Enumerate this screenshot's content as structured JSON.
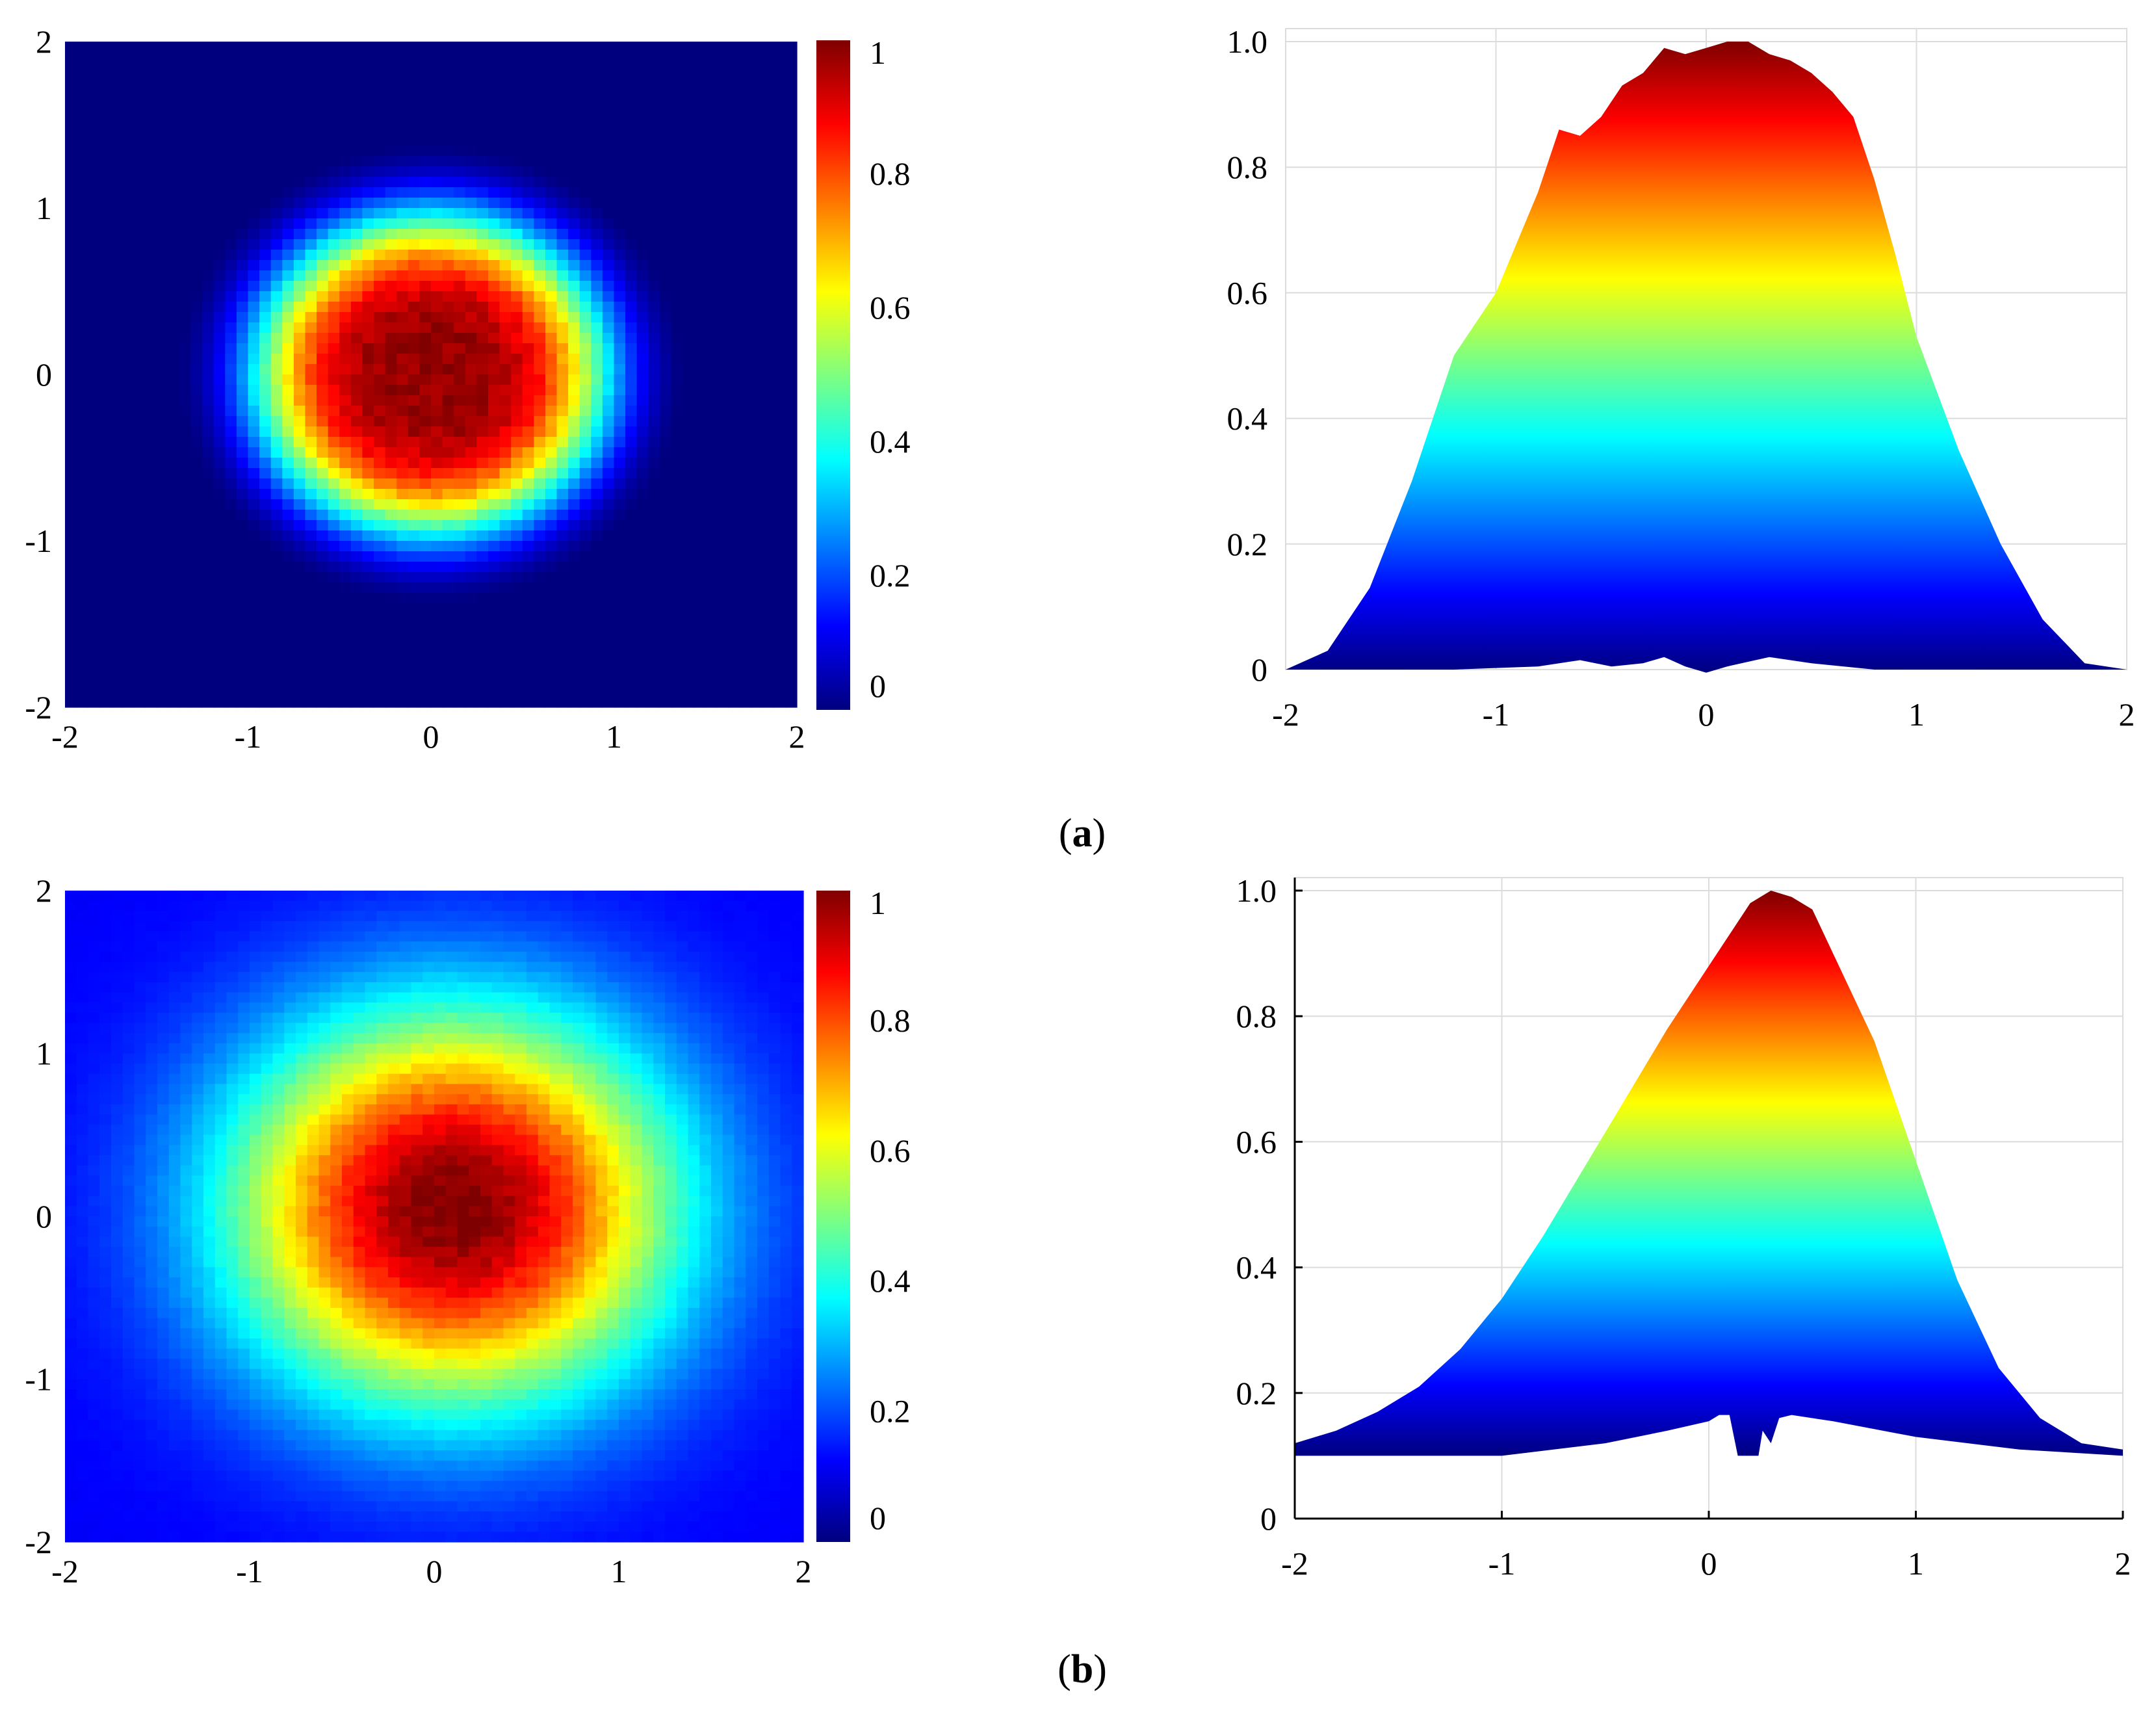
{
  "figure": {
    "panels": [
      {
        "label_open": "(",
        "label_letter": "a",
        "label_close": ")"
      },
      {
        "label_open": "(",
        "label_letter": "b",
        "label_close": ")"
      }
    ]
  },
  "colors": {
    "jet_stops": [
      "#00007f",
      "#0000ff",
      "#007fff",
      "#00ffff",
      "#7fff7f",
      "#ffff00",
      "#ff7f00",
      "#ff0000",
      "#7f0000"
    ],
    "grid": "#dcdcdc",
    "axis": "#000000"
  },
  "chart_data": [
    {
      "type": "heatmap",
      "panel": "a",
      "xlim": [
        -2,
        2
      ],
      "ylim": [
        -2,
        2
      ],
      "x_ticks": [
        -2,
        -1,
        0,
        1,
        2
      ],
      "y_ticks": [
        -2,
        -1,
        0,
        1,
        2
      ],
      "x_tick_labels": [
        "-2",
        "-1",
        "0",
        "1",
        "2"
      ],
      "y_tick_labels": [
        "-2",
        "-1",
        "0",
        "1",
        "2"
      ],
      "colormap": "jet",
      "colorbar": {
        "range": [
          0,
          1
        ],
        "ticks": [
          "0",
          "0.2",
          "0.4",
          "0.6",
          "0.8",
          "1"
        ]
      },
      "distribution": {
        "shape": "flat-top",
        "center": [
          0.0,
          0.0
        ],
        "half_width": 0.95,
        "peak": 1.0
      }
    },
    {
      "type": "area",
      "panel": "a",
      "xlim": [
        -2,
        2
      ],
      "ylim": [
        0,
        1
      ],
      "grid": true,
      "fill": "jet-vertical",
      "x_tick_labels": [
        "-2",
        "-1",
        "0",
        "1",
        "2"
      ],
      "y_tick_labels": [
        "0",
        "0.2",
        "0.4",
        "0.6",
        "0.8",
        "1.0"
      ],
      "upper": {
        "x": [
          -2.0,
          -1.8,
          -1.6,
          -1.4,
          -1.2,
          -1.0,
          -0.8,
          -0.7,
          -0.6,
          -0.5,
          -0.4,
          -0.3,
          -0.2,
          -0.1,
          0.0,
          0.1,
          0.2,
          0.3,
          0.4,
          0.5,
          0.6,
          0.7,
          0.8,
          0.9,
          1.0,
          1.2,
          1.4,
          1.6,
          1.8,
          2.0
        ],
        "y": [
          0.0,
          0.03,
          0.13,
          0.3,
          0.5,
          0.6,
          0.76,
          0.86,
          0.85,
          0.88,
          0.93,
          0.95,
          0.99,
          0.98,
          0.99,
          1.0,
          1.0,
          0.98,
          0.97,
          0.95,
          0.92,
          0.88,
          0.78,
          0.66,
          0.53,
          0.35,
          0.2,
          0.08,
          0.01,
          0.0
        ]
      },
      "lower": {
        "x": [
          -2.0,
          -1.2,
          -0.8,
          -0.6,
          -0.45,
          -0.3,
          -0.2,
          -0.1,
          0.0,
          0.1,
          0.3,
          0.5,
          0.8,
          1.2,
          2.0
        ],
        "y": [
          0.0,
          0.0,
          0.005,
          0.015,
          0.005,
          0.01,
          0.02,
          0.005,
          -0.005,
          0.005,
          0.02,
          0.01,
          0.0,
          0.0,
          0.0
        ]
      }
    },
    {
      "type": "heatmap",
      "panel": "b",
      "xlim": [
        -2,
        2
      ],
      "ylim": [
        -2,
        2
      ],
      "x_ticks": [
        -2,
        -1,
        0,
        1,
        2
      ],
      "y_ticks": [
        -2,
        -1,
        0,
        1,
        2
      ],
      "x_tick_labels": [
        "-2",
        "-1",
        "0",
        "1",
        "2"
      ],
      "y_tick_labels": [
        "-2",
        "-1",
        "0",
        "1",
        "2"
      ],
      "colormap": "jet",
      "colorbar": {
        "range": [
          0,
          1
        ],
        "ticks": [
          "0",
          "0.2",
          "0.4",
          "0.6",
          "0.8",
          "1"
        ]
      },
      "distribution": {
        "shape": "gaussian",
        "center": [
          0.1,
          0.05
        ],
        "half_width": 1.2,
        "peak": 1.0
      }
    },
    {
      "type": "area",
      "panel": "b",
      "xlim": [
        -2,
        2
      ],
      "ylim": [
        0,
        1
      ],
      "grid": true,
      "fill": "jet-vertical",
      "x_tick_labels": [
        "-2",
        "-1",
        "0",
        "1",
        "2"
      ],
      "y_tick_labels": [
        "0",
        "0.2",
        "0.4",
        "0.6",
        "0.8",
        "1.0"
      ],
      "upper": {
        "x": [
          -2.0,
          -1.8,
          -1.6,
          -1.4,
          -1.2,
          -1.0,
          -0.8,
          -0.6,
          -0.4,
          -0.2,
          0.0,
          0.1,
          0.2,
          0.3,
          0.4,
          0.5,
          0.6,
          0.8,
          1.0,
          1.2,
          1.4,
          1.6,
          1.8,
          2.0
        ],
        "y": [
          0.12,
          0.14,
          0.17,
          0.21,
          0.27,
          0.35,
          0.45,
          0.56,
          0.67,
          0.78,
          0.88,
          0.93,
          0.98,
          1.0,
          0.99,
          0.97,
          0.9,
          0.76,
          0.57,
          0.38,
          0.24,
          0.16,
          0.12,
          0.11
        ]
      },
      "lower": {
        "x": [
          -2.0,
          -1.0,
          -0.5,
          -0.2,
          0.0,
          0.05,
          0.1,
          0.14,
          0.16,
          0.24,
          0.26,
          0.3,
          0.34,
          0.4,
          0.6,
          1.0,
          1.5,
          2.0
        ],
        "y": [
          0.1,
          0.1,
          0.12,
          0.14,
          0.155,
          0.165,
          0.165,
          0.1,
          0.1,
          0.1,
          0.14,
          0.12,
          0.16,
          0.165,
          0.155,
          0.13,
          0.11,
          0.1
        ]
      }
    }
  ]
}
